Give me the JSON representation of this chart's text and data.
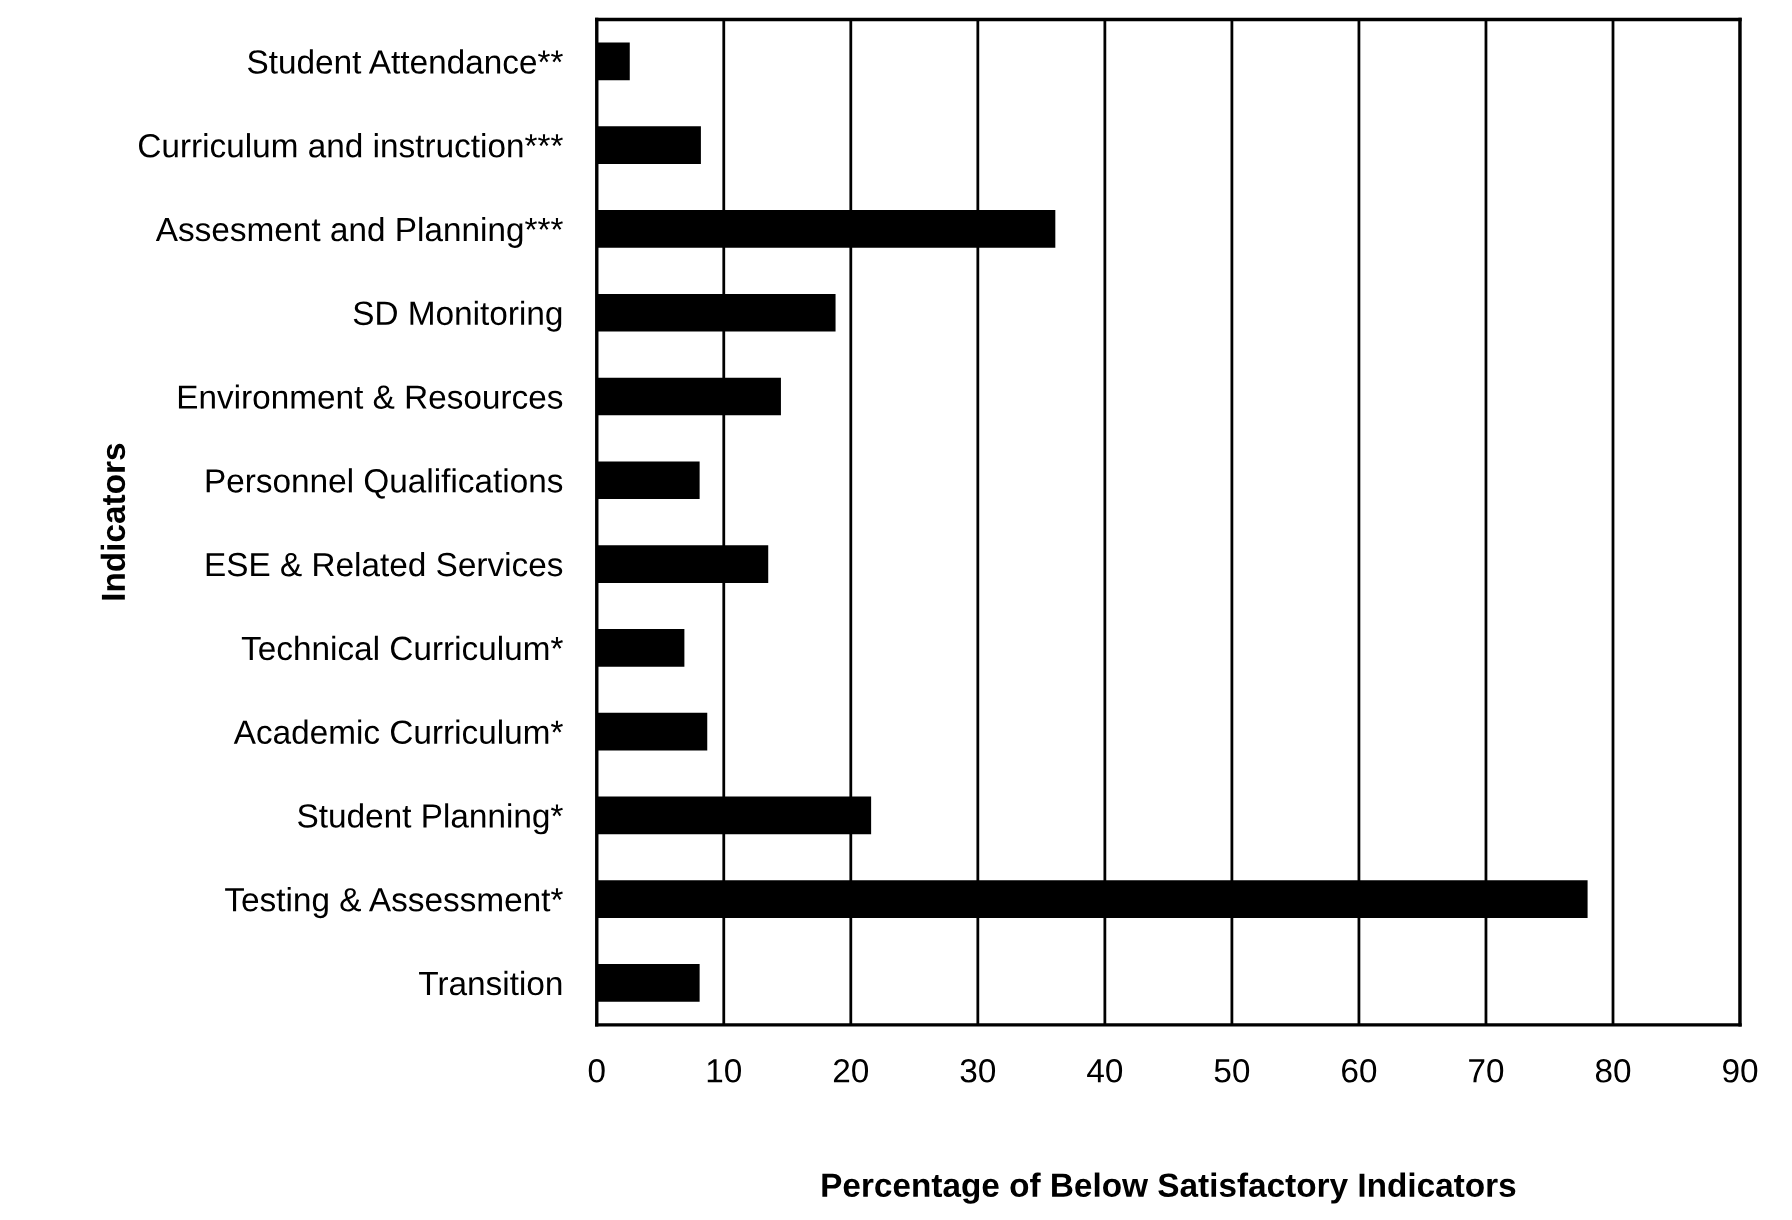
{
  "chart_data": {
    "type": "bar",
    "orientation": "horizontal",
    "categories": [
      "Student Attendance**",
      "Curriculum and instruction***",
      "Assesment and Planning***",
      "SD Monitoring",
      "Environment & Resources",
      "Personnel Qualifications",
      "ESE & Related Services",
      "Technical Curriculum*",
      "Academic Curriculum*",
      "Student Planning*",
      "Testing & Assessment*",
      "Transition"
    ],
    "values": [
      2.6,
      8.2,
      36.1,
      18.8,
      14.5,
      8.1,
      13.5,
      6.9,
      8.7,
      21.6,
      78,
      8.1
    ],
    "color": "#000000",
    "xlabel": "Percentage of Below Satisfactory Indicators",
    "ylabel": "Indicators",
    "xlim": [
      0,
      90
    ],
    "xticks": [
      0,
      10,
      20,
      30,
      40,
      50,
      60,
      70,
      80,
      90
    ],
    "grid": "x",
    "legend": false
  }
}
